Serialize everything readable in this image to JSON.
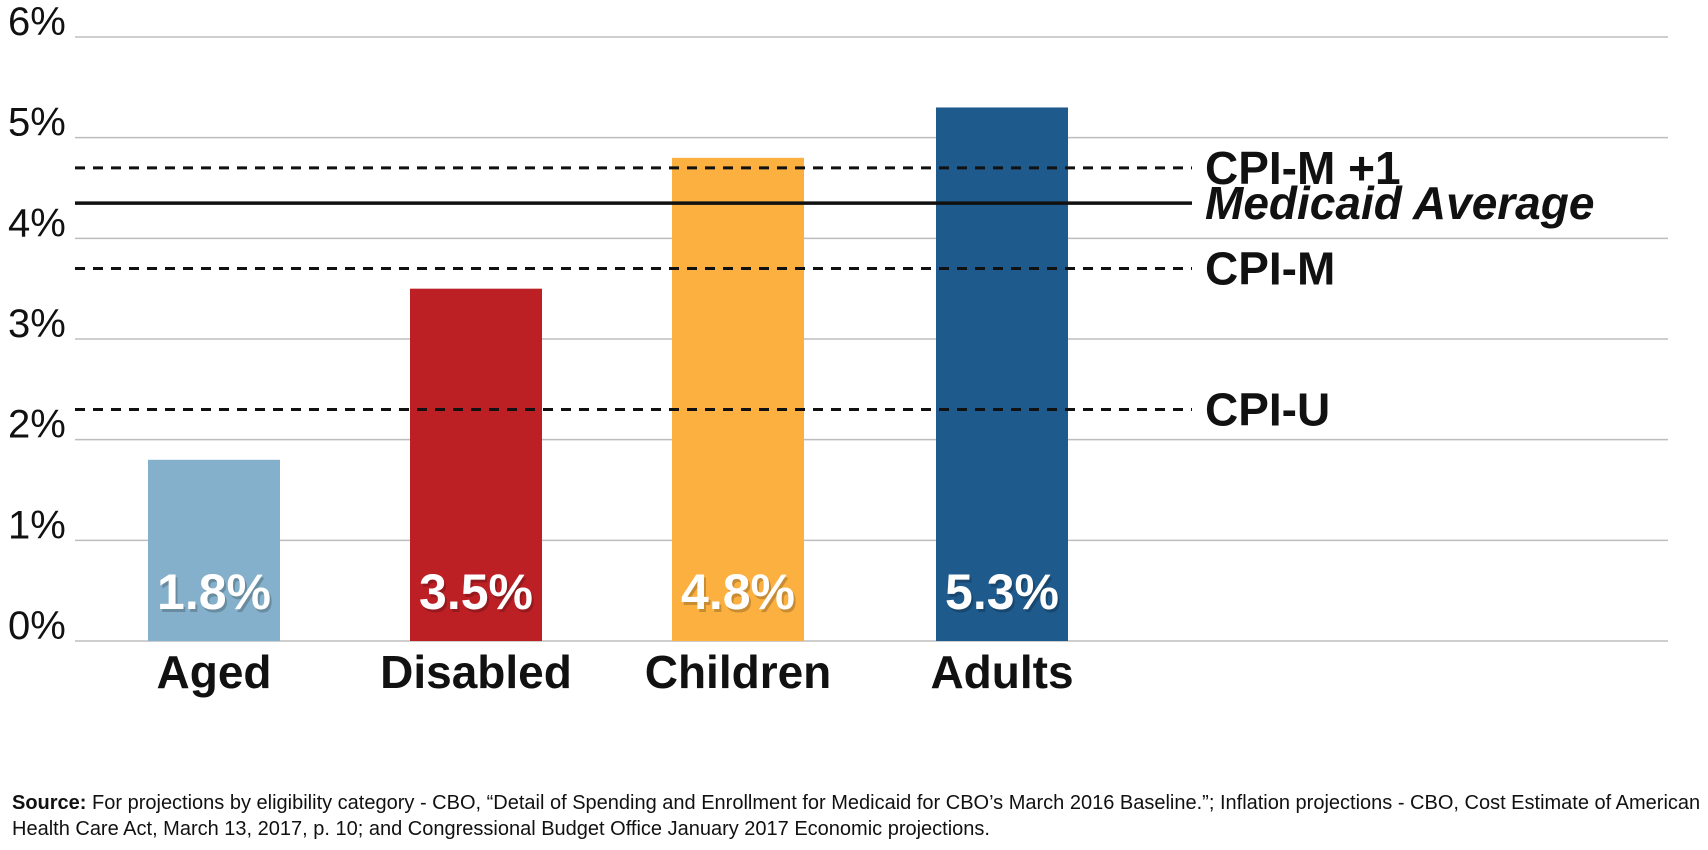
{
  "chart_data": {
    "type": "bar",
    "title": "",
    "xlabel": "",
    "ylabel": "",
    "ylim": [
      0,
      6
    ],
    "y_ticks": [
      {
        "value": 0,
        "label": "0%"
      },
      {
        "value": 1,
        "label": "1%"
      },
      {
        "value": 2,
        "label": "2%"
      },
      {
        "value": 3,
        "label": "3%"
      },
      {
        "value": 4,
        "label": "4%"
      },
      {
        "value": 5,
        "label": "5%"
      },
      {
        "value": 6,
        "label": "6%"
      }
    ],
    "grid": true,
    "categories": [
      "Aged",
      "Disabled",
      "Children",
      "Adults"
    ],
    "values": [
      1.8,
      3.5,
      4.8,
      5.3
    ],
    "value_labels": [
      "1.8%",
      "3.5%",
      "4.8%",
      "5.3%"
    ],
    "bar_colors": [
      "#84b0cb",
      "#bc2025",
      "#fbb040",
      "#1f5a8c"
    ],
    "reference_lines": [
      {
        "name": "CPI-M +1",
        "value": 4.7,
        "style": "dashed"
      },
      {
        "name": "Medicaid Average",
        "value": 4.35,
        "style": "solid",
        "italic": true
      },
      {
        "name": "CPI-M",
        "value": 3.7,
        "style": "dashed"
      },
      {
        "name": "CPI-U",
        "value": 2.3,
        "style": "dashed"
      }
    ]
  },
  "source": {
    "label": "Source:",
    "text": "For projections by eligibility category - CBO, “Detail of Spending and Enrollment for Medicaid for CBO’s March 2016 Baseline.”; Inflation projections - CBO, Cost Estimate of American Health Care Act, March 13, 2017, p. 10; and Congressional Budget Office January 2017 Economic projections."
  }
}
